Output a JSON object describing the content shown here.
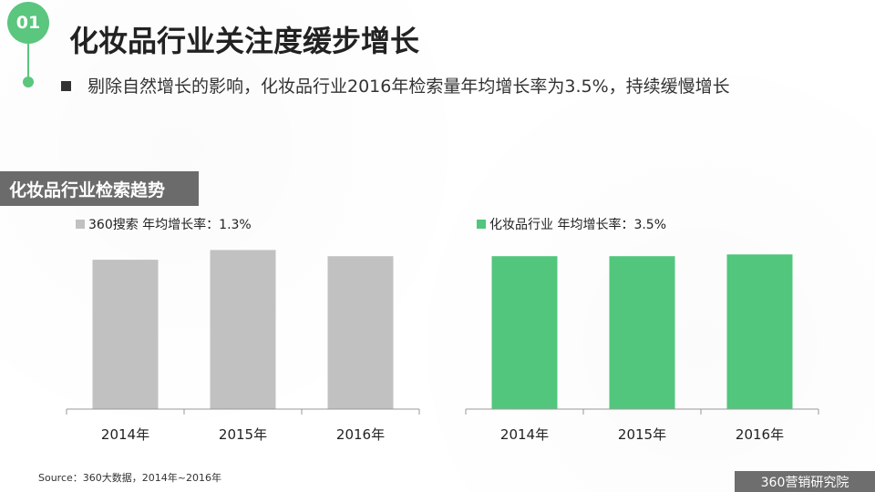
{
  "slide": {
    "number": "01",
    "title": "化妆品行业关注度缓步增长",
    "subtitle": "剔除自然增长的影响，化妆品行业2016年检索量年均增长率为3.5%，持续缓慢增长"
  },
  "section": {
    "label": "化妆品行业检索趋势"
  },
  "colors": {
    "accent": "#5ac67e",
    "gray_bar": "#c1c1c1",
    "green_bar": "#52c67c",
    "section_bg": "#6b6b6b"
  },
  "chart_data": [
    {
      "type": "bar",
      "legend": "360搜索 年均增长率：1.3%",
      "categories": [
        "2014年",
        "2015年",
        "2016年"
      ],
      "values": [
        0.845,
        0.9,
        0.865
      ],
      "ylim": [
        0,
        1
      ],
      "color": "#c1c1c1",
      "legend_position": "top-left",
      "grid": false
    },
    {
      "type": "bar",
      "legend": "化妆品行业 年均增长率：3.5%",
      "categories": [
        "2014年",
        "2015年",
        "2016年"
      ],
      "values": [
        0.865,
        0.865,
        0.875
      ],
      "ylim": [
        0,
        1
      ],
      "color": "#52c67c",
      "legend_position": "top-left",
      "grid": false
    }
  ],
  "footer": {
    "source": "Source：360大数据，2014年~2016年",
    "logo_text": "360营销研究院"
  }
}
